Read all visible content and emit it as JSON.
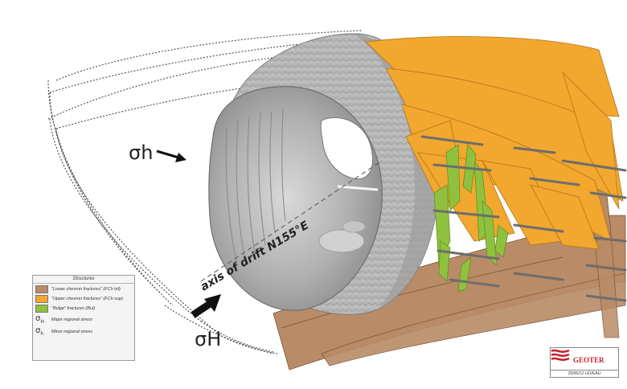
{
  "labels": {
    "sigma_h_minor": "σh",
    "sigma_h_major": "σH",
    "axis_label": "axis of drift N155°E"
  },
  "legend": {
    "title": "Structures",
    "items": [
      {
        "swatch": "lower",
        "text": "\"Lower chevron fractures\" (FCh inf)"
      },
      {
        "swatch": "upper",
        "text": "\"Upper chevron fractures\" (FCh sup)"
      },
      {
        "swatch": "bulge",
        "text": "\"Bulge\" fractures (Bul)"
      }
    ],
    "stress": [
      {
        "symbol": "σ",
        "sub": "H",
        "text": "Major regional stress"
      },
      {
        "symbol": "σ",
        "sub": "h",
        "text": "Minor regional stress"
      }
    ]
  },
  "logo": {
    "name": "GEOTER",
    "date": "20/06/12  LEVEAU"
  },
  "colors": {
    "lower_fractures": "#b98b66",
    "upper_fractures": "#f2a72e",
    "bulge_fractures": "#8fc13f",
    "tunnel": "#a9a9a9"
  }
}
